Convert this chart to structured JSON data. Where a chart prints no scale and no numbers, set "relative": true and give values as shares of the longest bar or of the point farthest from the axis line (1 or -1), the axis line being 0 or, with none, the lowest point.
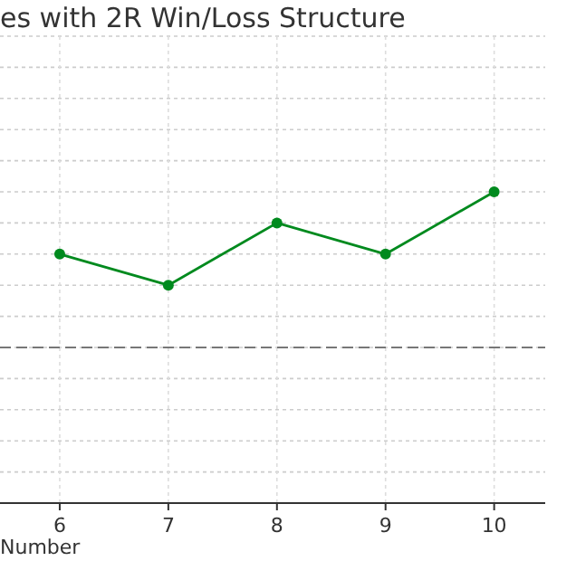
{
  "chart_data": {
    "type": "line",
    "title": "es with 2R Win/Loss Structure",
    "xlabel": "Number",
    "relative": true,
    "x": [
      6,
      7,
      8,
      9,
      10
    ],
    "xlim": [
      5.45,
      10.47
    ],
    "xticks": [
      6,
      7,
      8,
      9,
      10
    ],
    "series": [
      {
        "color": "#008a1e",
        "values": [
          0.8,
          0.7,
          0.9,
          0.8,
          1.0
        ]
      }
    ],
    "ref_lines": [
      {
        "axis": "y",
        "value": 0.5,
        "color": "#777777",
        "line_style": "dashed"
      }
    ],
    "grid": true,
    "marker": "circle",
    "line_style": "solid"
  }
}
